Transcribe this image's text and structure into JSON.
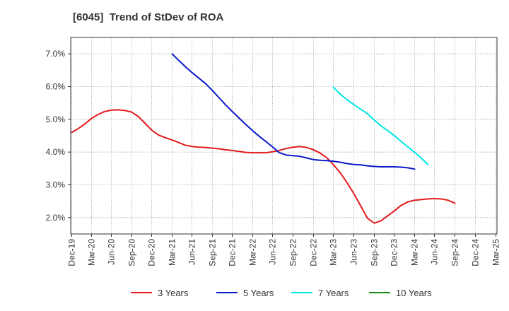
{
  "chart_data": {
    "type": "line",
    "title": "[6045]  Trend of StDev of ROA",
    "xlabel": "",
    "ylabel": "",
    "x_ticks": [
      "Dec-19",
      "Mar-20",
      "Jun-20",
      "Sep-20",
      "Dec-20",
      "Mar-21",
      "Jun-21",
      "Sep-21",
      "Dec-21",
      "Mar-22",
      "Jun-22",
      "Sep-22",
      "Dec-22",
      "Mar-23",
      "Jun-23",
      "Sep-23",
      "Dec-23",
      "Mar-24",
      "Jun-24",
      "Sep-24",
      "Dec-24",
      "Mar-25"
    ],
    "y_ticks": [
      "2.0%",
      "3.0%",
      "4.0%",
      "5.0%",
      "6.0%",
      "7.0%"
    ],
    "ylim": [
      1.5,
      7.5
    ],
    "grid": true,
    "legend_position": "bottom",
    "series": [
      {
        "name": "3 Years",
        "color": "#e31a1c",
        "points": [
          [
            "Dec-19",
            4.6
          ],
          [
            "Jan-20",
            4.72
          ],
          [
            "Feb-20",
            4.86
          ],
          [
            "Mar-20",
            5.03
          ],
          [
            "Apr-20",
            5.15
          ],
          [
            "May-20",
            5.24
          ],
          [
            "Jun-20",
            5.28
          ],
          [
            "Jul-20",
            5.29
          ],
          [
            "Aug-20",
            5.27
          ],
          [
            "Sep-20",
            5.22
          ],
          [
            "Oct-20",
            5.08
          ],
          [
            "Nov-20",
            4.88
          ],
          [
            "Dec-20",
            4.67
          ],
          [
            "Jan-21",
            4.52
          ],
          [
            "Feb-21",
            4.44
          ],
          [
            "Mar-21",
            4.37
          ],
          [
            "Apr-21",
            4.29
          ],
          [
            "May-21",
            4.21
          ],
          [
            "Jun-21",
            4.17
          ],
          [
            "Jul-21",
            4.15
          ],
          [
            "Aug-21",
            4.14
          ],
          [
            "Sep-21",
            4.12
          ],
          [
            "Oct-21",
            4.1
          ],
          [
            "Nov-21",
            4.07
          ],
          [
            "Dec-21",
            4.05
          ],
          [
            "Jan-22",
            4.02
          ],
          [
            "Feb-22",
            3.99
          ],
          [
            "Mar-22",
            3.98
          ],
          [
            "Apr-22",
            3.98
          ],
          [
            "May-22",
            3.98
          ],
          [
            "Jun-22",
            4.01
          ],
          [
            "Jul-22",
            4.05
          ],
          [
            "Aug-22",
            4.11
          ],
          [
            "Sep-22",
            4.15
          ],
          [
            "Oct-22",
            4.17
          ],
          [
            "Nov-22",
            4.14
          ],
          [
            "Dec-22",
            4.07
          ],
          [
            "Jan-23",
            3.97
          ],
          [
            "Feb-23",
            3.83
          ],
          [
            "Mar-23",
            3.62
          ],
          [
            "Apr-23",
            3.37
          ],
          [
            "May-23",
            3.07
          ],
          [
            "Jun-23",
            2.73
          ],
          [
            "Jul-23",
            2.36
          ],
          [
            "Aug-23",
            1.98
          ],
          [
            "Sep-23",
            1.83
          ],
          [
            "Oct-23",
            1.9
          ],
          [
            "Nov-23",
            2.05
          ],
          [
            "Dec-23",
            2.2
          ],
          [
            "Jan-24",
            2.37
          ],
          [
            "Feb-24",
            2.48
          ],
          [
            "Mar-24",
            2.53
          ],
          [
            "Apr-24",
            2.55
          ],
          [
            "May-24",
            2.57
          ],
          [
            "Jun-24",
            2.58
          ],
          [
            "Jul-24",
            2.57
          ],
          [
            "Aug-24",
            2.53
          ],
          [
            "Sep-24",
            2.44
          ]
        ]
      },
      {
        "name": "5 Years",
        "color": "#0a1ac8",
        "points": [
          [
            "Mar-21",
            7.0
          ],
          [
            "Apr-21",
            6.8
          ],
          [
            "May-21",
            6.61
          ],
          [
            "Jun-21",
            6.43
          ],
          [
            "Jul-21",
            6.26
          ],
          [
            "Aug-21",
            6.09
          ],
          [
            "Sep-21",
            5.88
          ],
          [
            "Oct-21",
            5.66
          ],
          [
            "Nov-21",
            5.44
          ],
          [
            "Dec-21",
            5.24
          ],
          [
            "Jan-22",
            5.04
          ],
          [
            "Feb-22",
            4.84
          ],
          [
            "Mar-22",
            4.65
          ],
          [
            "Apr-22",
            4.48
          ],
          [
            "May-22",
            4.32
          ],
          [
            "Jun-22",
            4.16
          ],
          [
            "Jul-22",
            3.98
          ],
          [
            "Aug-22",
            3.91
          ],
          [
            "Sep-22",
            3.89
          ],
          [
            "Oct-22",
            3.87
          ],
          [
            "Nov-22",
            3.82
          ],
          [
            "Dec-22",
            3.77
          ],
          [
            "Jan-23",
            3.75
          ],
          [
            "Feb-23",
            3.74
          ],
          [
            "Mar-23",
            3.72
          ],
          [
            "Apr-23",
            3.69
          ],
          [
            "May-23",
            3.65
          ],
          [
            "Jun-23",
            3.62
          ],
          [
            "Jul-23",
            3.61
          ],
          [
            "Aug-23",
            3.58
          ],
          [
            "Sep-23",
            3.56
          ],
          [
            "Oct-23",
            3.55
          ],
          [
            "Nov-23",
            3.55
          ],
          [
            "Dec-23",
            3.55
          ],
          [
            "Jan-24",
            3.54
          ],
          [
            "Feb-24",
            3.52
          ],
          [
            "Mar-24",
            3.48
          ]
        ]
      },
      {
        "name": "7 Years",
        "color": "#00e5e5",
        "points": [
          [
            "Mar-23",
            5.98
          ],
          [
            "Apr-23",
            5.77
          ],
          [
            "May-23",
            5.6
          ],
          [
            "Jun-23",
            5.45
          ],
          [
            "Jul-23",
            5.31
          ],
          [
            "Aug-23",
            5.17
          ],
          [
            "Sep-23",
            4.98
          ],
          [
            "Oct-23",
            4.8
          ],
          [
            "Nov-23",
            4.66
          ],
          [
            "Dec-23",
            4.51
          ],
          [
            "Jan-24",
            4.33
          ],
          [
            "Feb-24",
            4.16
          ],
          [
            "Mar-24",
            3.99
          ],
          [
            "Apr-24",
            3.82
          ],
          [
            "May-24",
            3.62
          ]
        ]
      },
      {
        "name": "10 Years",
        "color": "#1a8a1a",
        "points": []
      }
    ]
  }
}
